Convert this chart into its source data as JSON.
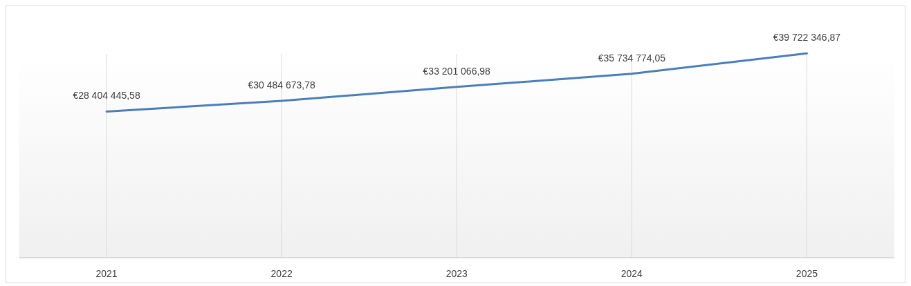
{
  "chart_data": {
    "type": "line",
    "categories": [
      "2021",
      "2022",
      "2023",
      "2024",
      "2025"
    ],
    "series": [
      {
        "color": "#4a7ebb",
        "values": [
          28404445.58,
          30484673.78,
          33201066.98,
          35734774.05,
          39722346.87
        ],
        "value_labels": [
          "€28 404 445,58",
          "€30 484 673,78",
          "€33 201 066,98",
          "€35 734 774,05",
          "€39 722 346,87"
        ]
      }
    ],
    "grid": "x",
    "tick_labels": "x",
    "marker": "none",
    "line_style": "solid"
  }
}
